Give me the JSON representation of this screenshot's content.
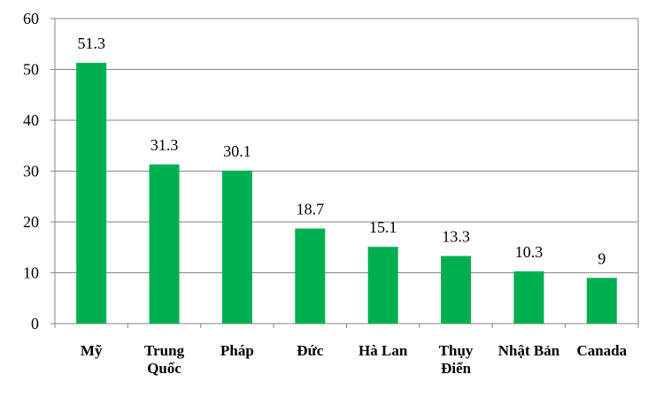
{
  "chart_data": {
    "type": "bar",
    "categories": [
      [
        "Mỹ"
      ],
      [
        "Trung",
        "Quốc"
      ],
      [
        "Pháp"
      ],
      [
        "Đức"
      ],
      [
        "Hà Lan"
      ],
      [
        "Thụy",
        "Điển"
      ],
      [
        "Nhật Bản"
      ],
      [
        "Canada"
      ]
    ],
    "values": [
      51.3,
      31.3,
      30.1,
      18.7,
      15.1,
      13.3,
      10.3,
      9
    ],
    "data_labels": [
      "51.3",
      "31.3",
      "30.1",
      "18.7",
      "15.1",
      "13.3",
      "10.3",
      "9"
    ],
    "yticks": [
      0,
      10,
      20,
      30,
      40,
      50,
      60
    ],
    "ylim": [
      0,
      60
    ],
    "grid": true,
    "bar_color": "#00b050",
    "grid_color": "#868686"
  }
}
